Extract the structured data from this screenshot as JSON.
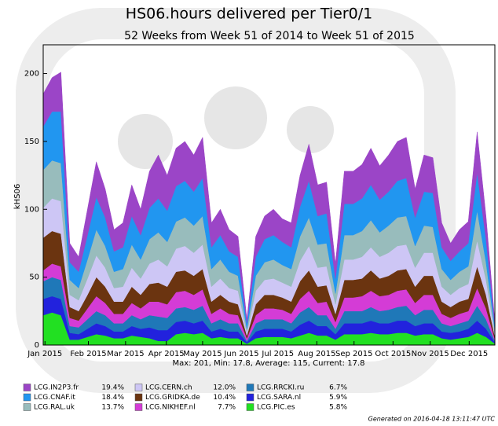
{
  "chart_data": {
    "type": "stacked-area",
    "title": "HS06.hours delivered per Tier0/1",
    "subtitle": "52 Weeks from Week 51 of 2014 to Week 51 of 2015",
    "y_label": "kHS06",
    "stats": "Max: 201, Min: 17.8, Average: 115, Current: 17.8",
    "footer": "Generated on 2016-04-18 13:11:47 UTC",
    "grid": false,
    "x": [
      0,
      1,
      2,
      3,
      4,
      5,
      6,
      7,
      8,
      9,
      10,
      11,
      12,
      13,
      14,
      15,
      16,
      17,
      18,
      19,
      20,
      21,
      22,
      23,
      24,
      25,
      26,
      27,
      28,
      29,
      30,
      31,
      32,
      33,
      34,
      35,
      36,
      37,
      38,
      39,
      40,
      41,
      42,
      43,
      44,
      45,
      46,
      47,
      48,
      49,
      50,
      51
    ],
    "xlim": [
      0,
      51
    ],
    "xticks": [
      {
        "value": 0.2,
        "label": "Jan 2015"
      },
      {
        "value": 5.1,
        "label": "Feb 2015"
      },
      {
        "value": 9.3,
        "label": "Mar 2015"
      },
      {
        "value": 13.9,
        "label": "Apr 2015"
      },
      {
        "value": 18.0,
        "label": "May 2015"
      },
      {
        "value": 22.4,
        "label": "Jun 2015"
      },
      {
        "value": 26.5,
        "label": "Jul 2015"
      },
      {
        "value": 30.9,
        "label": "Aug 2015"
      },
      {
        "value": 35.1,
        "label": "Sep 2015"
      },
      {
        "value": 39.5,
        "label": "Oct 2015"
      },
      {
        "value": 43.7,
        "label": "Nov 2015"
      },
      {
        "value": 48.1,
        "label": "Dec 2015"
      }
    ],
    "ylim": [
      0,
      220
    ],
    "yticks": [
      0,
      50,
      100,
      150,
      200
    ],
    "series": [
      {
        "name": "LCG.IN2P3.fr",
        "color": "#9b45c7",
        "share": 19.4,
        "share_label": "19.4%",
        "values": [
          24,
          25,
          29,
          14,
          11,
          19,
          26,
          21,
          16,
          18,
          23,
          19,
          27,
          32,
          26,
          28,
          29,
          27,
          30,
          18,
          19,
          16,
          15,
          3,
          15,
          17,
          19,
          17,
          18,
          23,
          27,
          23,
          23,
          11,
          24,
          24,
          25,
          27,
          25,
          27,
          29,
          30,
          21,
          27,
          26,
          18,
          13,
          16,
          16,
          30,
          17,
          3.1
        ]
      },
      {
        "name": "LCG.CNAF.it",
        "color": "#2196f0",
        "share": 18.4,
        "share_label": "18.4%",
        "values": [
          32,
          36,
          38,
          13,
          12,
          18,
          24,
          21,
          15,
          16,
          21,
          18,
          23,
          25,
          23,
          26,
          27,
          25,
          28,
          16,
          18,
          15,
          14,
          4,
          14,
          17,
          18,
          17,
          16,
          22,
          27,
          21,
          22,
          11,
          23,
          23,
          24,
          26,
          24,
          25,
          27,
          28,
          21,
          25,
          25,
          16,
          14,
          15,
          17,
          28,
          17,
          3.2
        ]
      },
      {
        "name": "LCG.RAL.uk",
        "color": "#98bcbc",
        "share": 13.7,
        "share_label": "13.7%",
        "values": [
          28,
          28,
          28,
          11,
          9,
          14,
          19,
          16,
          12,
          13,
          17,
          14,
          18,
          20,
          18,
          20,
          21,
          20,
          21,
          13,
          14,
          12,
          11,
          3,
          11,
          13,
          14,
          13,
          13,
          18,
          21,
          17,
          17,
          8,
          18,
          18,
          19,
          20,
          18,
          20,
          21,
          21,
          16,
          20,
          19,
          13,
          11,
          12,
          13,
          22,
          13,
          2.5
        ]
      },
      {
        "name": "LCG.CERN.ch",
        "color": "#cdc6f5",
        "share": 12.0,
        "share_label": "12.0%",
        "values": [
          22,
          24,
          24,
          9,
          8,
          12,
          16,
          14,
          10,
          11,
          14,
          12,
          15,
          17,
          15,
          17,
          18,
          17,
          18,
          11,
          12,
          10,
          10,
          2,
          10,
          11,
          12,
          11,
          11,
          15,
          18,
          14,
          14,
          7,
          15,
          15,
          16,
          17,
          16,
          17,
          18,
          18,
          14,
          17,
          17,
          11,
          9,
          10,
          11,
          19,
          11,
          2.1
        ]
      },
      {
        "name": "LCG.GRIDKA.de",
        "color": "#6b3410",
        "share": 10.4,
        "share_label": "10.4%",
        "values": [
          24,
          24,
          24,
          8,
          7,
          10,
          14,
          12,
          9,
          9,
          12,
          10,
          13,
          14,
          13,
          15,
          15,
          14,
          15,
          9,
          10,
          9,
          8,
          2,
          8,
          10,
          10,
          9,
          9,
          13,
          15,
          12,
          12,
          6,
          13,
          13,
          13,
          15,
          13,
          14,
          15,
          15,
          12,
          14,
          14,
          9,
          8,
          9,
          9,
          16,
          10,
          1.9
        ]
      },
      {
        "name": "LCG.NIKHEF.nl",
        "color": "#d43cd6",
        "share": 7.7,
        "share_label": "7.7%",
        "values": [
          8,
          10,
          10,
          6,
          5,
          8,
          11,
          9,
          7,
          7,
          9,
          8,
          10,
          11,
          10,
          12,
          12,
          11,
          12,
          7,
          8,
          7,
          6,
          2,
          6,
          8,
          8,
          7,
          7,
          10,
          12,
          9,
          10,
          5,
          10,
          10,
          11,
          12,
          11,
          11,
          12,
          12,
          9,
          11,
          11,
          7,
          6,
          7,
          7,
          13,
          8,
          1.4
        ]
      },
      {
        "name": "LCG.RRCKI.ru",
        "color": "#1f78b8",
        "share": 6.7,
        "share_label": "6.7%",
        "values": [
          13,
          14,
          14,
          5,
          5,
          7,
          9,
          8,
          6,
          6,
          8,
          7,
          9,
          10,
          9,
          10,
          10,
          10,
          11,
          6,
          7,
          6,
          6,
          1,
          6,
          7,
          7,
          7,
          6,
          9,
          10,
          8,
          8,
          4,
          9,
          9,
          9,
          10,
          9,
          10,
          10,
          11,
          8,
          10,
          10,
          6,
          5,
          6,
          6,
          11,
          7,
          1
        ]
      },
      {
        "name": "LCG.SARA.nl",
        "color": "#2222dd",
        "share": 5.9,
        "share_label": "5.9%",
        "values": [
          12,
          12,
          12,
          5,
          4,
          6,
          8,
          7,
          5,
          5,
          7,
          6,
          8,
          8,
          8,
          9,
          9,
          8,
          9,
          5,
          6,
          5,
          5,
          1,
          5,
          6,
          6,
          6,
          5,
          8,
          9,
          7,
          7,
          4,
          8,
          8,
          8,
          9,
          8,
          8,
          9,
          9,
          7,
          8,
          8,
          5,
          5,
          5,
          6,
          9,
          6,
          1
        ]
      },
      {
        "name": "LCG.PIC.es",
        "color": "#22e022",
        "share": 5.8,
        "share_label": "5.8%",
        "values": [
          22,
          24,
          22,
          4,
          4,
          6,
          8,
          7,
          5,
          5,
          7,
          6,
          5,
          3,
          3,
          8,
          9,
          8,
          9,
          5,
          6,
          5,
          5,
          1,
          5,
          6,
          6,
          6,
          5,
          7,
          9,
          7,
          7,
          4,
          8,
          8,
          8,
          9,
          8,
          8,
          9,
          9,
          7,
          8,
          8,
          5,
          4,
          5,
          6,
          9,
          6,
          1
        ]
      }
    ]
  }
}
